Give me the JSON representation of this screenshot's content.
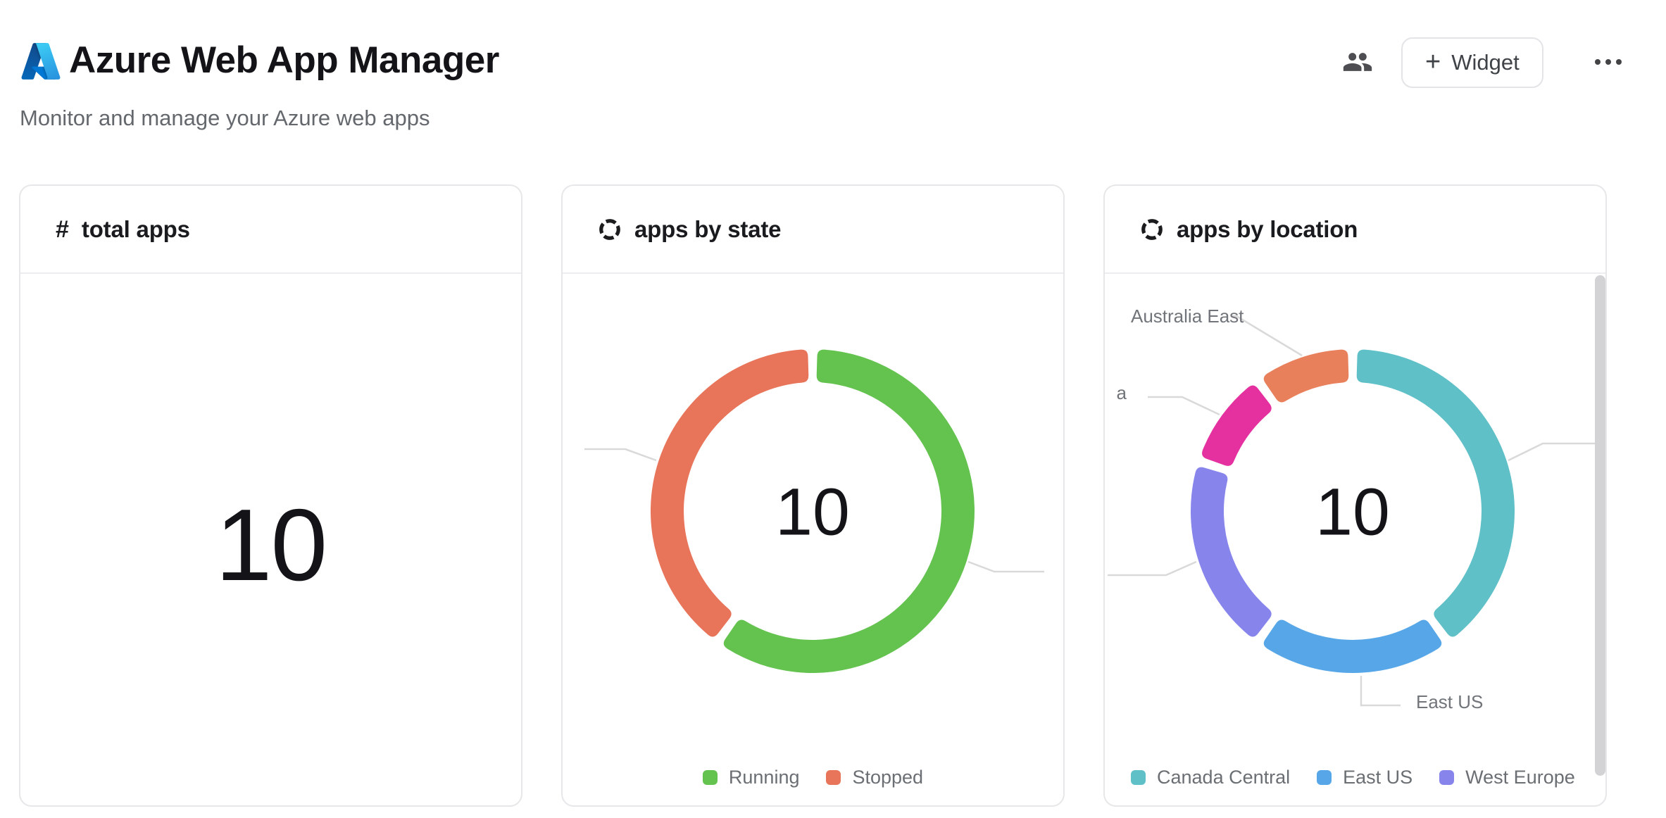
{
  "header": {
    "title": "Azure Web App Manager",
    "subtitle": "Monitor and manage your Azure web apps",
    "widget_button": {
      "plus": "+",
      "label": "Widget"
    }
  },
  "icons": {
    "hash": "#"
  },
  "chart_data": [
    {
      "type": "metric",
      "title": "total apps",
      "value": 10,
      "value_label": "10"
    },
    {
      "type": "pie",
      "subtype": "donut",
      "title": "apps by state",
      "center_label": "10",
      "total": 10,
      "start_angle": "top",
      "direction": "clockwise",
      "segments": [
        {
          "label": "Running",
          "value": 6,
          "color": "#64c24f"
        },
        {
          "label": "Stopped",
          "value": 4,
          "color": "#e8745a"
        }
      ],
      "legend": {
        "position": "bottom-center",
        "items": [
          "Running",
          "Stopped"
        ]
      }
    },
    {
      "type": "pie",
      "subtype": "donut",
      "title": "apps by location",
      "center_label": "10",
      "total": 10,
      "start_angle": "top",
      "direction": "clockwise",
      "segments": [
        {
          "label": "Canada Central",
          "value": 4,
          "color": "#5fc0c7"
        },
        {
          "label": "East US",
          "value": 2,
          "color": "#57a7e8"
        },
        {
          "label": "West Europe",
          "value": 2,
          "color": "#8785ec"
        },
        {
          "label": "a",
          "label_truncated": true,
          "value": 1,
          "color": "#e5309f"
        },
        {
          "label": "Australia East",
          "value": 1,
          "color": "#e8805c"
        }
      ],
      "legend": {
        "position": "bottom-left",
        "items": [
          "Canada Central",
          "East US",
          "West Europe"
        ]
      },
      "outside_labels": [
        {
          "text": "Australia East"
        },
        {
          "text": "a",
          "truncated": true
        },
        {
          "text": "East US"
        }
      ],
      "has_scrollbar": true
    }
  ]
}
